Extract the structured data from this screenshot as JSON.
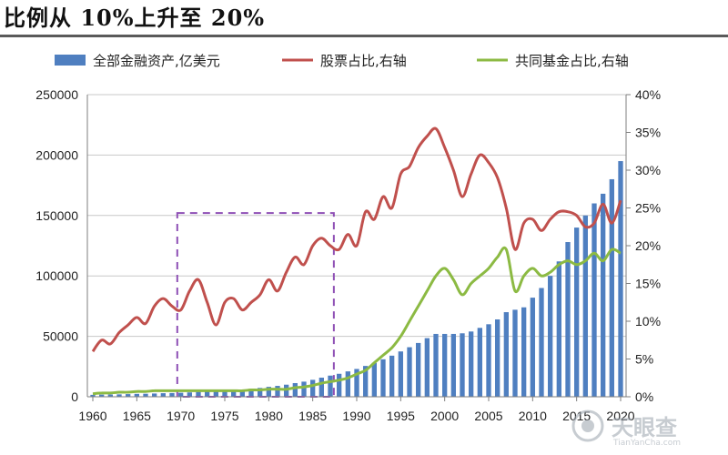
{
  "header": {
    "title": "比例从 10%上升至 20%"
  },
  "watermark": {
    "text": "天眼查",
    "url": "TianYanCha.com",
    "icon": "tianyancha-logo-icon"
  },
  "colors": {
    "bars": "#4f7fc0",
    "stock_line": "#c0504d",
    "fund_line": "#8cba43",
    "box": "#8e4fb5",
    "grid": "#c8c8c8"
  },
  "chart_data": {
    "type": "bar+line",
    "title": "",
    "legend_position": "top",
    "legend": [
      "全部金融资产,亿美元",
      "股票占比,右轴",
      "共同基金占比,右轴"
    ],
    "x": [
      1960,
      1961,
      1962,
      1963,
      1964,
      1965,
      1966,
      1967,
      1968,
      1969,
      1970,
      1971,
      1972,
      1973,
      1974,
      1975,
      1976,
      1977,
      1978,
      1979,
      1980,
      1981,
      1982,
      1983,
      1984,
      1985,
      1986,
      1987,
      1988,
      1989,
      1990,
      1991,
      1992,
      1993,
      1994,
      1995,
      1996,
      1997,
      1998,
      1999,
      2000,
      2001,
      2002,
      2003,
      2004,
      2005,
      2006,
      2007,
      2008,
      2009,
      2010,
      2011,
      2012,
      2013,
      2014,
      2015,
      2016,
      2017,
      2018,
      2019,
      2020
    ],
    "x_ticks": [
      "1960",
      "1965",
      "1970",
      "1975",
      "1980",
      "1985",
      "1990",
      "1995",
      "2000",
      "2005",
      "2010",
      "2015",
      "2020"
    ],
    "y_left": {
      "lim": [
        0,
        250000
      ],
      "ticks": [
        "0",
        "50000",
        "100000",
        "150000",
        "200000",
        "250000"
      ]
    },
    "y_right": {
      "lim": [
        0,
        0.4
      ],
      "ticks": [
        "0%",
        "5%",
        "10%",
        "15%",
        "20%",
        "25%",
        "30%",
        "35%",
        "40%"
      ]
    },
    "series": [
      {
        "name": "全部金融资产,亿美元",
        "type": "bar",
        "axis": "left",
        "values": [
          1600,
          1750,
          1850,
          2000,
          2200,
          2400,
          2500,
          2700,
          2950,
          3100,
          3300,
          3600,
          4000,
          4300,
          4600,
          5000,
          5500,
          6000,
          6600,
          7300,
          8200,
          9000,
          10000,
          11300,
          12500,
          14000,
          15800,
          17500,
          19000,
          21000,
          23000,
          25500,
          28000,
          31000,
          34000,
          37500,
          41000,
          44500,
          48500,
          52000,
          52000,
          52000,
          52500,
          54000,
          57000,
          60000,
          64000,
          70000,
          72000,
          74000,
          82000,
          90000,
          100000,
          112000,
          128000,
          140000,
          150000,
          160000,
          168000,
          180000,
          195000
        ]
      },
      {
        "name": "股票占比,右轴",
        "type": "line",
        "axis": "right",
        "values": [
          0.06,
          0.075,
          0.07,
          0.085,
          0.095,
          0.105,
          0.097,
          0.12,
          0.13,
          0.12,
          0.115,
          0.14,
          0.155,
          0.125,
          0.095,
          0.125,
          0.13,
          0.115,
          0.125,
          0.135,
          0.155,
          0.14,
          0.165,
          0.185,
          0.175,
          0.2,
          0.21,
          0.2,
          0.195,
          0.215,
          0.2,
          0.245,
          0.235,
          0.265,
          0.25,
          0.295,
          0.305,
          0.33,
          0.345,
          0.355,
          0.33,
          0.3,
          0.265,
          0.295,
          0.32,
          0.31,
          0.29,
          0.25,
          0.195,
          0.23,
          0.235,
          0.22,
          0.235,
          0.245,
          0.245,
          0.24,
          0.225,
          0.23,
          0.255,
          0.23,
          0.26
        ]
      },
      {
        "name": "共同基金占比,右轴",
        "type": "line",
        "axis": "right",
        "values": [
          0.004,
          0.005,
          0.005,
          0.006,
          0.006,
          0.007,
          0.007,
          0.008,
          0.008,
          0.008,
          0.008,
          0.008,
          0.008,
          0.008,
          0.008,
          0.008,
          0.008,
          0.008,
          0.009,
          0.009,
          0.01,
          0.01,
          0.01,
          0.012,
          0.013,
          0.015,
          0.018,
          0.02,
          0.022,
          0.025,
          0.03,
          0.035,
          0.045,
          0.055,
          0.065,
          0.08,
          0.1,
          0.12,
          0.14,
          0.16,
          0.17,
          0.155,
          0.135,
          0.15,
          0.16,
          0.17,
          0.185,
          0.195,
          0.14,
          0.16,
          0.17,
          0.16,
          0.165,
          0.175,
          0.18,
          0.175,
          0.18,
          0.19,
          0.18,
          0.195,
          0.19
        ]
      }
    ],
    "annotations": [
      {
        "type": "dashed-box",
        "x_range": [
          1969.6,
          1987.4
        ],
        "y_left_range": [
          0,
          152000
        ]
      }
    ]
  }
}
